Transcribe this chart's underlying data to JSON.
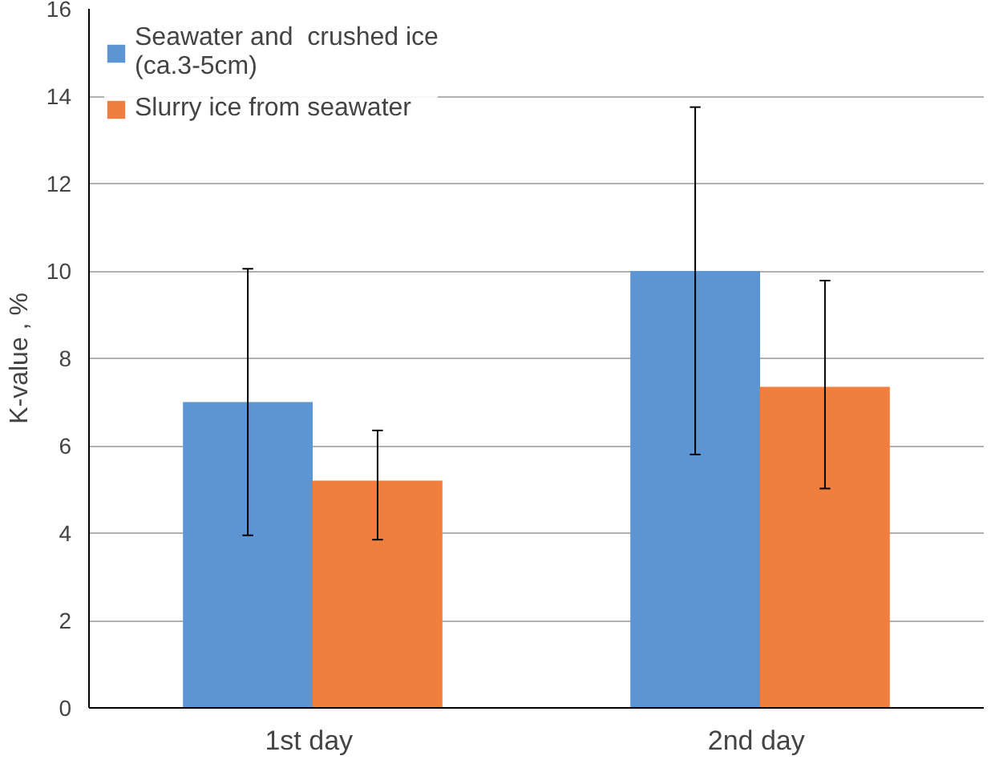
{
  "chart_data": {
    "type": "bar",
    "ylabel": "K-value , %",
    "categories": [
      "1st  day",
      "2nd  day"
    ],
    "series": [
      {
        "name": "Seawater and  crushed ice\n(ca.3-5cm)",
        "color": "#5b95d3",
        "values": [
          7.0,
          10.0
        ],
        "errors": [
          [
            3.95,
            10.05
          ],
          [
            5.8,
            13.75
          ]
        ]
      },
      {
        "name": "Slurry ice from seawater",
        "color": "#f07f3f",
        "values": [
          5.2,
          7.35
        ],
        "errors": [
          [
            3.85,
            6.35
          ],
          [
            5.02,
            9.78
          ]
        ]
      }
    ],
    "ylim": [
      0,
      16
    ],
    "yticks": [
      0,
      2,
      4,
      6,
      8,
      10,
      12,
      14,
      16
    ],
    "grid": "y",
    "legend": "top left"
  }
}
